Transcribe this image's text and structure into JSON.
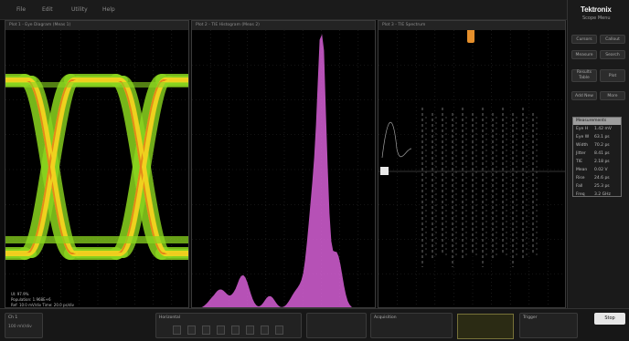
{
  "menu": {
    "items": [
      "File",
      "Edit",
      "Utility",
      "Help"
    ]
  },
  "brand": {
    "logo": "Tektronix",
    "model": "Scope Menu"
  },
  "right_panel": {
    "buttons": [
      "Cursors",
      "Callout",
      "Measure",
      "Search",
      "Results Table",
      "Plot",
      "Add New",
      "More"
    ],
    "results_table": {
      "title": "Measurements",
      "rows": [
        {
          "label": "Eye H",
          "value": "1.42 mV"
        },
        {
          "label": "Eye W",
          "value": "63.1 ps"
        },
        {
          "label": "Width",
          "value": "70.2 ps"
        },
        {
          "label": "Jitter",
          "value": "8.41 ps"
        },
        {
          "label": "TIE",
          "value": "2.18 ps"
        },
        {
          "label": "Mean",
          "value": "0.02 V"
        },
        {
          "label": "Rise",
          "value": "24.6 ps"
        },
        {
          "label": "Fall",
          "value": "25.3 ps"
        },
        {
          "label": "Freq",
          "value": "3.2 GHz"
        }
      ]
    }
  },
  "panels": {
    "eye": {
      "title": "Plot 1 - Eye Diagram (Meas 1)",
      "legend_1": "UI: 97.9%",
      "legend_2": "Population: 1.968E+6",
      "legend_3": "Ref: 10.0 mV/div   Time: 20.0 ps/div"
    },
    "hist": {
      "title": "Plot 2 - TIE Histogram (Meas 2)"
    },
    "spectrum": {
      "title": "Plot 3 - TIE Spectrum"
    }
  },
  "colors": {
    "eye_yellow": "#f2d21f",
    "eye_green": "#8bd61f",
    "eye_orange": "#e28318",
    "histogram": "#d660d6",
    "trigger": "#e58f2b"
  },
  "bottom": {
    "channel_box": "Ch 1",
    "channel_value": "100 mV/div",
    "horizontal_title": "Horizontal",
    "acq_title": "Acquisition",
    "trigger_title": "Trigger",
    "stop_label": "Stop"
  }
}
